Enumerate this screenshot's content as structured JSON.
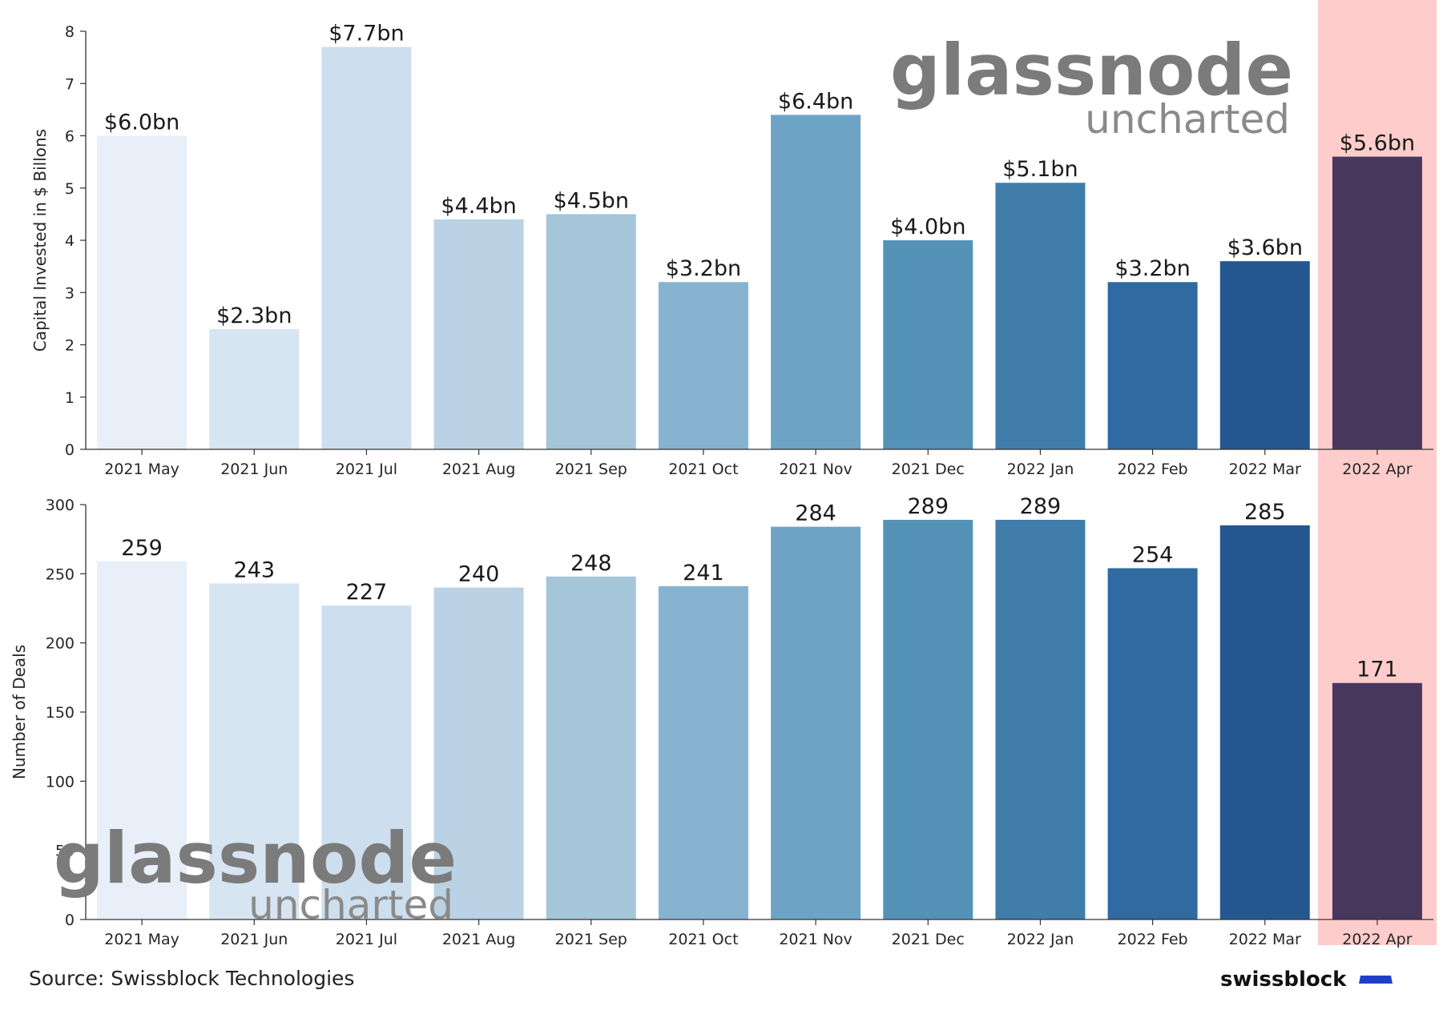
{
  "chart_data": [
    {
      "type": "bar",
      "categories": [
        "2021 May",
        "2021 Jun",
        "2021 Jul",
        "2021 Aug",
        "2021 Sep",
        "2021 Oct",
        "2021 Nov",
        "2021 Dec",
        "2022 Jan",
        "2022 Feb",
        "2022 Mar",
        "2022 Apr"
      ],
      "values": [
        6.0,
        2.3,
        7.7,
        4.4,
        4.5,
        3.2,
        6.4,
        4.0,
        5.1,
        3.2,
        3.6,
        5.6
      ],
      "data_labels": [
        "$6.0bn",
        "$2.3bn",
        "$7.7bn",
        "$4.4bn",
        "$4.5bn",
        "$3.2bn",
        "$6.4bn",
        "$4.0bn",
        "$5.1bn",
        "$3.2bn",
        "$3.6bn",
        "$5.6bn"
      ],
      "ylabel": "Capital Invested in $ Billons",
      "ylim": [
        0,
        8
      ],
      "yticks": [
        0,
        1,
        2,
        3,
        4,
        5,
        6,
        7,
        8
      ],
      "grid": false
    },
    {
      "type": "bar",
      "categories": [
        "2021 May",
        "2021 Jun",
        "2021 Jul",
        "2021 Aug",
        "2021 Sep",
        "2021 Oct",
        "2021 Nov",
        "2021 Dec",
        "2022 Jan",
        "2022 Feb",
        "2022 Mar",
        "2022 Apr"
      ],
      "values": [
        259,
        243,
        227,
        240,
        248,
        241,
        284,
        289,
        289,
        254,
        285,
        171
      ],
      "data_labels": [
        "259",
        "243",
        "227",
        "240",
        "248",
        "241",
        "284",
        "289",
        "289",
        "254",
        "285",
        "171"
      ],
      "ylabel": "Number of Deals",
      "ylim": [
        0,
        300
      ],
      "yticks": [
        0,
        50,
        100,
        150,
        200,
        250,
        300
      ],
      "grid": false
    }
  ],
  "bar_colors": [
    "#e8eff8",
    "#d7e4f1",
    "#cddeee",
    "#bad2e3",
    "#a5c5d8",
    "#86b3cf",
    "#6da3c4",
    "#5592b8",
    "#417dab",
    "#2f6aa0",
    "#245790",
    "#47375d"
  ],
  "highlight": {
    "category": "2022 Apr",
    "color": "#ffcccc"
  },
  "watermark": {
    "main": "glassnode",
    "sub": "uncharted"
  },
  "footer": {
    "source": "Source: Swissblock Technologies",
    "brand": "swissblock",
    "brand_color": "#1f3fc9"
  }
}
